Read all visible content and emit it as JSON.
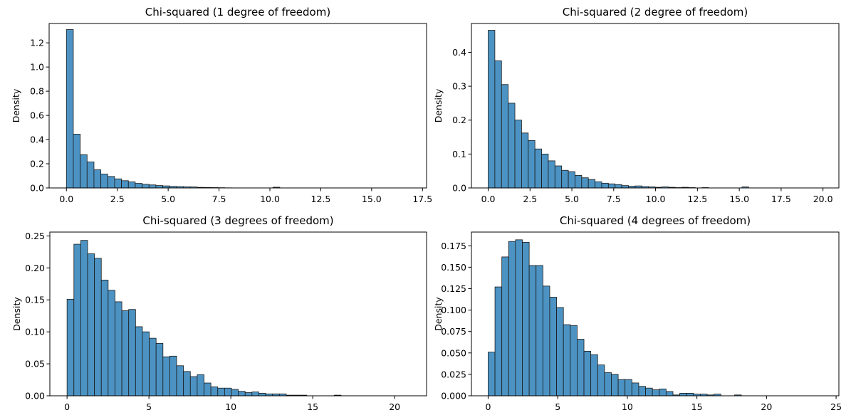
{
  "figure": {
    "panel_count": 4
  },
  "style": {
    "bar_fill": "#4c93c3",
    "bar_edge": "#1a1a1a",
    "background": "#ffffff",
    "axis_color": "#000000"
  },
  "chart_data": [
    {
      "type": "bar",
      "title": "Chi-squared (1 degree of freedom)",
      "xlabel": "",
      "ylabel": "Density",
      "xlim": [
        -0.85,
        17.7
      ],
      "ylim": [
        0,
        1.36
      ],
      "xticks": [
        0,
        2.5,
        5,
        7.5,
        10,
        12.5,
        15,
        17.5
      ],
      "xtick_labels": [
        "0.0",
        "2.5",
        "5.0",
        "7.5",
        "10.0",
        "12.5",
        "15.0",
        "17.5"
      ],
      "yticks": [
        0,
        0.2,
        0.4,
        0.6,
        0.8,
        1.0,
        1.2
      ],
      "ytick_labels": [
        "0.0",
        "0.2",
        "0.4",
        "0.6",
        "0.8",
        "1.0",
        "1.2"
      ],
      "bin_start": 0.0,
      "bin_width": 0.3383,
      "values": [
        1.31,
        0.445,
        0.275,
        0.215,
        0.15,
        0.115,
        0.095,
        0.075,
        0.06,
        0.05,
        0.038,
        0.03,
        0.025,
        0.02,
        0.017,
        0.013,
        0.011,
        0.009,
        0.008,
        0.005,
        0.004,
        0.003,
        0.002,
        0.001,
        0.0,
        0.0,
        0.0,
        0.0,
        0.0,
        0.0,
        0.006,
        0.0,
        0.0,
        0.0,
        0.0,
        0.0,
        0.0,
        0.0,
        0.0,
        0.0,
        0.0,
        0.0,
        0.0,
        0.0,
        0.0,
        0.0,
        0.0,
        0.0,
        0.0,
        0.0
      ]
    },
    {
      "type": "bar",
      "title": "Chi-squared (2 degree of freedom)",
      "xlabel": "",
      "ylabel": "Density",
      "xlim": [
        -1.0,
        20.95
      ],
      "ylim": [
        0,
        0.485
      ],
      "xticks": [
        0,
        2.5,
        5,
        7.5,
        10,
        12.5,
        15,
        17.5,
        20
      ],
      "xtick_labels": [
        "0.0",
        "2.5",
        "5.0",
        "7.5",
        "10.0",
        "12.5",
        "15.0",
        "17.5",
        "20.0"
      ],
      "yticks": [
        0,
        0.1,
        0.2,
        0.3,
        0.4
      ],
      "ytick_labels": [
        "0.0",
        "0.1",
        "0.2",
        "0.3",
        "0.4"
      ],
      "bin_start": 0.0,
      "bin_width": 0.399,
      "values": [
        0.465,
        0.375,
        0.305,
        0.25,
        0.2,
        0.162,
        0.14,
        0.115,
        0.1,
        0.08,
        0.065,
        0.052,
        0.048,
        0.037,
        0.03,
        0.025,
        0.018,
        0.014,
        0.012,
        0.01,
        0.007,
        0.005,
        0.006,
        0.004,
        0.003,
        0.002,
        0.003,
        0.002,
        0.001,
        0.002,
        0.001,
        0.0,
        0.001,
        0.0,
        0.0,
        0.0,
        0.0,
        0.0,
        0.003,
        0.0,
        0.0,
        0.0,
        0.0,
        0.0,
        0.0,
        0.0,
        0.0,
        0.0,
        0.0,
        0.0
      ]
    },
    {
      "type": "bar",
      "title": "Chi-squared (3 degrees of freedom)",
      "xlabel": "",
      "ylabel": "Density",
      "xlim": [
        -1.05,
        21.95
      ],
      "ylim": [
        0,
        0.256
      ],
      "xticks": [
        0,
        5,
        10,
        15,
        20
      ],
      "xtick_labels": [
        "0",
        "5",
        "10",
        "15",
        "20"
      ],
      "yticks": [
        0,
        0.05,
        0.1,
        0.15,
        0.2,
        0.25
      ],
      "ytick_labels": [
        "0.00",
        "0.05",
        "0.10",
        "0.15",
        "0.20",
        "0.25"
      ],
      "bin_start": 0.0,
      "bin_width": 0.4182,
      "values": [
        0.151,
        0.237,
        0.243,
        0.222,
        0.215,
        0.181,
        0.165,
        0.147,
        0.133,
        0.135,
        0.108,
        0.1,
        0.09,
        0.082,
        0.061,
        0.062,
        0.047,
        0.038,
        0.03,
        0.033,
        0.02,
        0.014,
        0.012,
        0.012,
        0.01,
        0.007,
        0.005,
        0.006,
        0.004,
        0.003,
        0.003,
        0.003,
        0.001,
        0.001,
        0.001,
        0.0,
        0.0,
        0.0,
        0.0,
        0.001,
        0.0,
        0.0,
        0.0,
        0.0,
        0.0,
        0.0,
        0.0,
        0.0,
        0.0,
        0.0
      ]
    },
    {
      "type": "bar",
      "title": "Chi-squared (4 degrees of freedom)",
      "xlabel": "",
      "ylabel": "Density",
      "xlim": [
        -1.2,
        25.2
      ],
      "ylim": [
        0,
        0.191
      ],
      "xticks": [
        0,
        5,
        10,
        15,
        20,
        25
      ],
      "xtick_labels": [
        "0",
        "5",
        "10",
        "15",
        "20",
        "25"
      ],
      "yticks": [
        0,
        0.025,
        0.05,
        0.075,
        0.1,
        0.125,
        0.15,
        0.175
      ],
      "ytick_labels": [
        "0.000",
        "0.025",
        "0.050",
        "0.075",
        "0.100",
        "0.125",
        "0.150",
        "0.175"
      ],
      "bin_start": 0.0,
      "bin_width": 0.4918,
      "values": [
        0.051,
        0.127,
        0.162,
        0.18,
        0.182,
        0.179,
        0.152,
        0.152,
        0.128,
        0.115,
        0.103,
        0.083,
        0.082,
        0.066,
        0.052,
        0.048,
        0.036,
        0.027,
        0.025,
        0.019,
        0.019,
        0.015,
        0.011,
        0.009,
        0.007,
        0.008,
        0.005,
        0.001,
        0.003,
        0.003,
        0.002,
        0.002,
        0.001,
        0.002,
        0.0,
        0.0,
        0.001,
        0.0,
        0.0,
        0.0,
        0.0,
        0.0,
        0.0,
        0.0,
        0.0,
        0.0,
        0.0,
        0.0,
        0.0,
        0.0
      ]
    }
  ]
}
